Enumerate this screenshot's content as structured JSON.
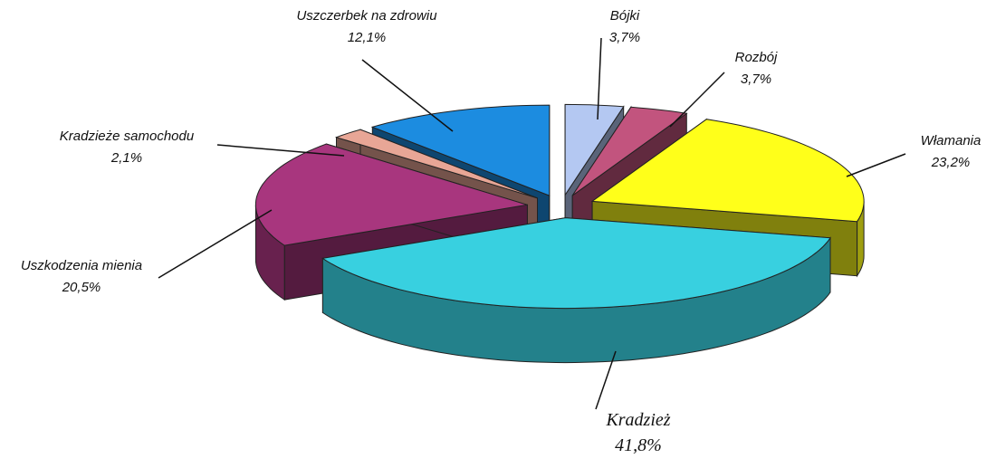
{
  "chart_data": {
    "type": "pie",
    "categories": [
      "Bójki",
      "Rozbój",
      "Włamania",
      "Kradzież",
      "Uszkodzenia mienia",
      "Kradzieże samochodu",
      "Uszczerbek na zdrowiu"
    ],
    "values": [
      3.7,
      3.7,
      23.2,
      41.8,
      20.5,
      2.1,
      12.1
    ],
    "value_labels": [
      "3,7%",
      "3,7%",
      "23,2%",
      "41,8%",
      "20,5%",
      "2,1%",
      "12,1%"
    ],
    "colors": [
      "#b4c8f2",
      "#c2547e",
      "#ffff1a",
      "#38d0e0",
      "#a8367e",
      "#e8a696",
      "#1c8ce0"
    ]
  }
}
